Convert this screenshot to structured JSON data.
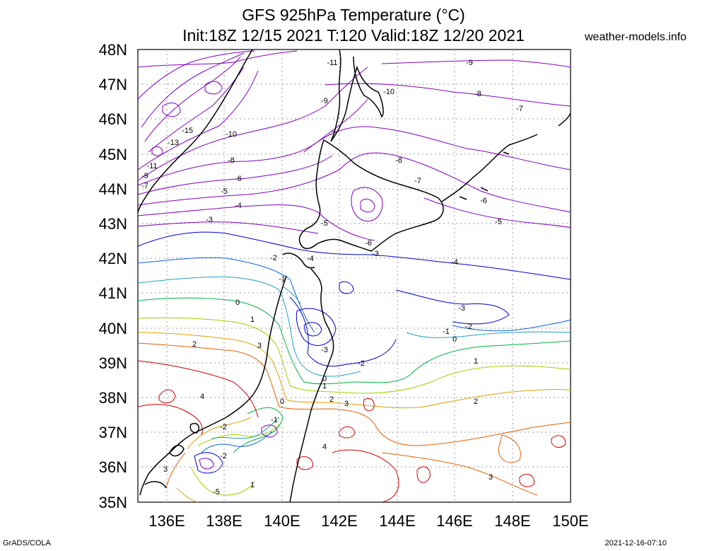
{
  "title_line1": "GFS 925hPa Temperature (°C)",
  "title_line2": "Init:18Z 12/15 2021 T:120 Valid:18Z 12/20 2021",
  "site": "weather-models.info",
  "footer_left": "GrADS/COLA",
  "footer_right": "2021-12-16-07:10",
  "map": {
    "lat_labels": [
      "48N",
      "47N",
      "46N",
      "45N",
      "44N",
      "43N",
      "42N",
      "41N",
      "40N",
      "39N",
      "38N",
      "37N",
      "36N",
      "35N"
    ],
    "lon_labels": [
      "136E",
      "138E",
      "140E",
      "142E",
      "144E",
      "146E",
      "148E",
      "150E"
    ],
    "contour_labels": [
      {
        "text": "-11",
        "color": "#8000c0"
      },
      {
        "text": "-10",
        "color": "#8000c0"
      },
      {
        "text": "-9",
        "color": "#8000c0"
      },
      {
        "text": "-9",
        "color": "#8000c0"
      },
      {
        "text": "-8",
        "color": "#8000c0"
      },
      {
        "text": "-7",
        "color": "#8000c0"
      },
      {
        "text": "-15",
        "color": "#8000c0"
      },
      {
        "text": "-10",
        "color": "#8000c0"
      },
      {
        "text": "-13",
        "color": "#8000c0"
      },
      {
        "text": "-7",
        "color": "#8000c0"
      },
      {
        "text": "-8",
        "color": "#8000c0"
      },
      {
        "text": "-11",
        "color": "#8000c0"
      },
      {
        "text": "-8",
        "color": "#8000c0"
      },
      {
        "text": "-9",
        "color": "#8000c0"
      },
      {
        "text": "-6",
        "color": "#8000c0"
      },
      {
        "text": "-7",
        "color": "#8000c0"
      },
      {
        "text": "-7",
        "color": "#8000c0"
      },
      {
        "text": "-5",
        "color": "#8000c0"
      },
      {
        "text": "-6",
        "color": "#8000c0"
      },
      {
        "text": "-4",
        "color": "#8000c0"
      },
      {
        "text": "-3",
        "color": "#8000c0"
      },
      {
        "text": "-5",
        "color": "#8000c0"
      },
      {
        "text": "-5",
        "color": "#8000c0"
      },
      {
        "text": "-6",
        "color": "#8000c0"
      },
      {
        "text": "-3",
        "color": "#0000d0"
      },
      {
        "text": "-2",
        "color": "#1060e0"
      },
      {
        "text": "-4",
        "color": "#0000d0"
      },
      {
        "text": "-4",
        "color": "#0000d0"
      },
      {
        "text": "-1",
        "color": "#20a0c0"
      },
      {
        "text": "0",
        "color": "#00b040"
      },
      {
        "text": "-3",
        "color": "#0000d0"
      },
      {
        "text": "1",
        "color": "#a0d000"
      },
      {
        "text": "-1",
        "color": "#20a0c0"
      },
      {
        "text": "-2",
        "color": "#1060e0"
      },
      {
        "text": "0",
        "color": "#00b040"
      },
      {
        "text": "2",
        "color": "#e0a000"
      },
      {
        "text": "3",
        "color": "#e06000"
      },
      {
        "text": "-3",
        "color": "#0000d0"
      },
      {
        "text": "-2",
        "color": "#1060e0"
      },
      {
        "text": "1",
        "color": "#a0d000"
      },
      {
        "text": "0",
        "color": "#00b040"
      },
      {
        "text": "1",
        "color": "#a0d000"
      },
      {
        "text": "2",
        "color": "#e0a000"
      },
      {
        "text": "3",
        "color": "#e06000"
      },
      {
        "text": "2",
        "color": "#e0a000"
      },
      {
        "text": "4",
        "color": "#d00000"
      },
      {
        "text": "0",
        "color": "#00b040"
      },
      {
        "text": "-1",
        "color": "#20a0c0"
      },
      {
        "text": "-2",
        "color": "#1060e0"
      },
      {
        "text": "-2",
        "color": "#1060e0"
      },
      {
        "text": "4",
        "color": "#d00000"
      },
      {
        "text": "3",
        "color": "#e06000"
      },
      {
        "text": "3",
        "color": "#e06000"
      },
      {
        "text": "-5",
        "color": "#0000d0"
      },
      {
        "text": "1",
        "color": "#a0d000"
      }
    ]
  },
  "colors": {
    "purple": "#8000c0",
    "blue": "#0000d0",
    "lightblue": "#1060e0",
    "cyan": "#20a0c0",
    "green": "#00b040",
    "yellowgreen": "#a0d000",
    "orange": "#e0a000",
    "darkorange": "#e06000",
    "red": "#d00000"
  }
}
